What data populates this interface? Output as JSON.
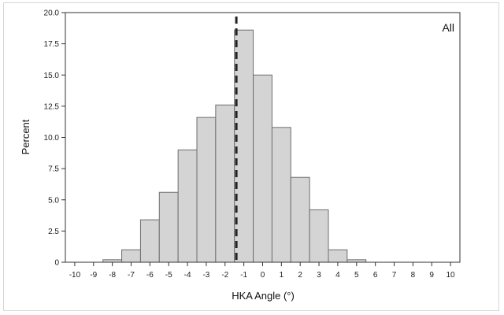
{
  "chart_data": {
    "type": "bar",
    "panel_label": "All",
    "xlabel": "HKA Angle (°)",
    "ylabel": "Percent",
    "xlim": [
      -10.5,
      10.5
    ],
    "ylim": [
      0,
      20
    ],
    "x_ticks": [
      "-10",
      "-9",
      "-8",
      "-7",
      "-6",
      "-5",
      "-4",
      "-3",
      "-2",
      "-1",
      "0",
      "1",
      "2",
      "3",
      "4",
      "5",
      "6",
      "7",
      "8",
      "9",
      "10"
    ],
    "y_ticks": [
      "0",
      "2.5",
      "5.0",
      "7.5",
      "10.0",
      "12.5",
      "15.0",
      "17.5",
      "20.0"
    ],
    "bins": [
      {
        "x": -8,
        "value": 0.2
      },
      {
        "x": -7,
        "value": 1.0
      },
      {
        "x": -6,
        "value": 3.4
      },
      {
        "x": -5,
        "value": 5.6
      },
      {
        "x": -4,
        "value": 9.0
      },
      {
        "x": -3,
        "value": 11.6
      },
      {
        "x": -2,
        "value": 12.6
      },
      {
        "x": -1,
        "value": 18.6
      },
      {
        "x": 0,
        "value": 15.0
      },
      {
        "x": 1,
        "value": 10.8
      },
      {
        "x": 2,
        "value": 6.8
      },
      {
        "x": 3,
        "value": 4.2
      },
      {
        "x": 4,
        "value": 1.0
      },
      {
        "x": 5,
        "value": 0.2
      }
    ],
    "reference_line": {
      "x": -1.4,
      "style": "dashed"
    },
    "bar_color": "#d4d4d4",
    "bar_edge_color": "#6e6e6e",
    "line_color": "#222222",
    "grid": false
  }
}
